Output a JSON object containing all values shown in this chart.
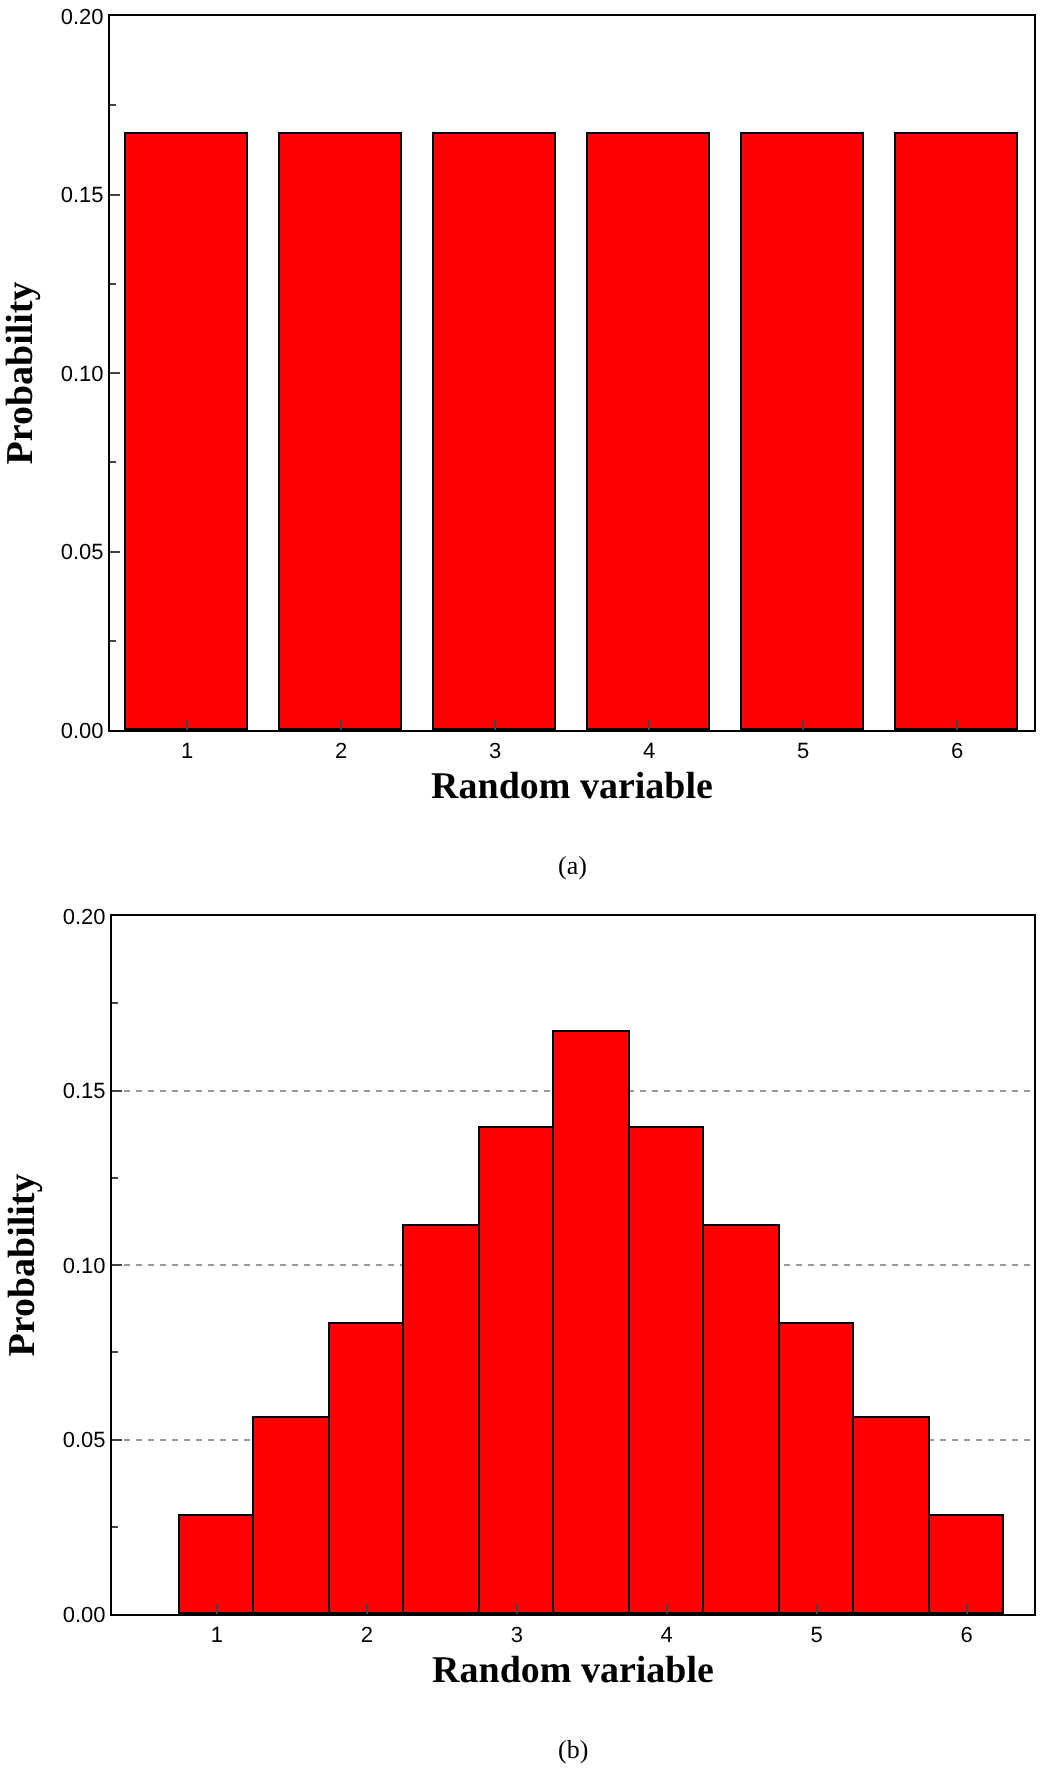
{
  "chart_data": [
    {
      "type": "bar",
      "categories": [
        "1",
        "2",
        "3",
        "4",
        "5",
        "6"
      ],
      "values": [
        0.167,
        0.167,
        0.167,
        0.167,
        0.167,
        0.167
      ],
      "color": "#ff0000",
      "ylim": [
        0,
        0.2
      ],
      "yticks": [
        {
          "value": 0,
          "label": "0.00"
        },
        {
          "value": 0.05,
          "label": "0.05"
        },
        {
          "value": 0.1,
          "label": "0.10"
        },
        {
          "value": 0.15,
          "label": "0.15"
        },
        {
          "value": 0.2,
          "label": "0.20"
        }
      ],
      "xlabel": "Random variable",
      "ylabel": "Probability",
      "annotations": [
        "(a)"
      ],
      "grid": false
    },
    {
      "type": "bar",
      "x": [
        1,
        1.5,
        2,
        2.5,
        3,
        3.5,
        4,
        4.5,
        5,
        5.5,
        6
      ],
      "values": [
        0.028,
        0.056,
        0.083,
        0.111,
        0.139,
        0.167,
        0.139,
        0.111,
        0.083,
        0.056,
        0.028
      ],
      "color": "#ff0000",
      "xlim": [
        0.3,
        6.45
      ],
      "xticks": [
        1,
        2,
        3,
        4,
        5,
        6
      ],
      "ylim": [
        0,
        0.2
      ],
      "yticks": [
        {
          "value": 0,
          "label": "0.00"
        },
        {
          "value": 0.05,
          "label": "0.05"
        },
        {
          "value": 0.1,
          "label": "0.10"
        },
        {
          "value": 0.15,
          "label": "0.15"
        },
        {
          "value": 0.2,
          "label": "0.20"
        }
      ],
      "xlabel": "Random variable",
      "ylabel": "Probability",
      "annotations": [
        "(b)"
      ],
      "grid": "y"
    }
  ]
}
